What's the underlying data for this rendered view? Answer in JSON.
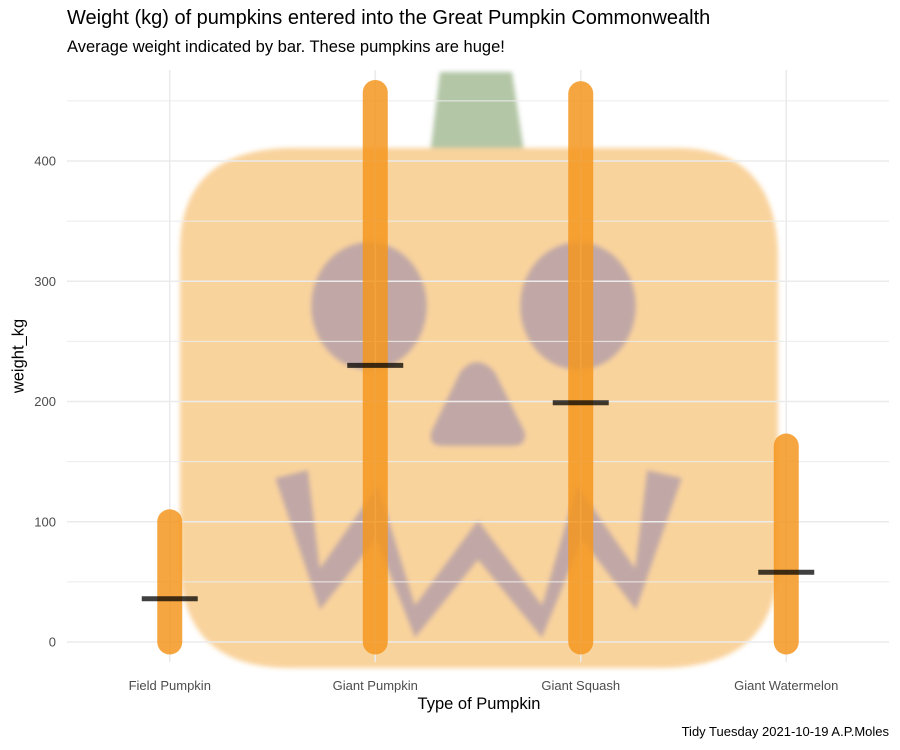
{
  "title": "Weight (kg) of pumpkins entered into the Great Pumpkin Commonwealth",
  "subtitle": "Average weight indicated by bar. These pumpkins are huge!",
  "caption": "Tidy Tuesday 2021-10-19 A.P.Moles",
  "background_image": "jack-o-lantern-icon",
  "colors": {
    "range": "#f5961e",
    "mean": "#000000",
    "grid": "#ebebeb",
    "pumpkin": "#f9d39c",
    "pumpkin_face": "#c1a8a6",
    "stem": "#b3c6a6",
    "axis_text": "#4d4d4d"
  },
  "chart_data": {
    "type": "range",
    "title": "Weight (kg) of pumpkins entered into the Great Pumpkin Commonwealth",
    "subtitle": "Average weight indicated by bar. These pumpkins are huge!",
    "xlabel": "Type of Pumpkin",
    "ylabel": "weight_kg",
    "ylim": [
      -10,
      475
    ],
    "yticks": [
      0,
      100,
      200,
      300,
      400
    ],
    "categories": [
      "Field Pumpkin",
      "Giant Pumpkin",
      "Giant Squash",
      "Giant Watermelon"
    ],
    "min": [
      0,
      0,
      0,
      0
    ],
    "max": [
      100,
      457,
      456,
      163
    ],
    "mean": [
      36,
      230,
      199,
      58
    ],
    "grid": true,
    "legend": "none"
  }
}
